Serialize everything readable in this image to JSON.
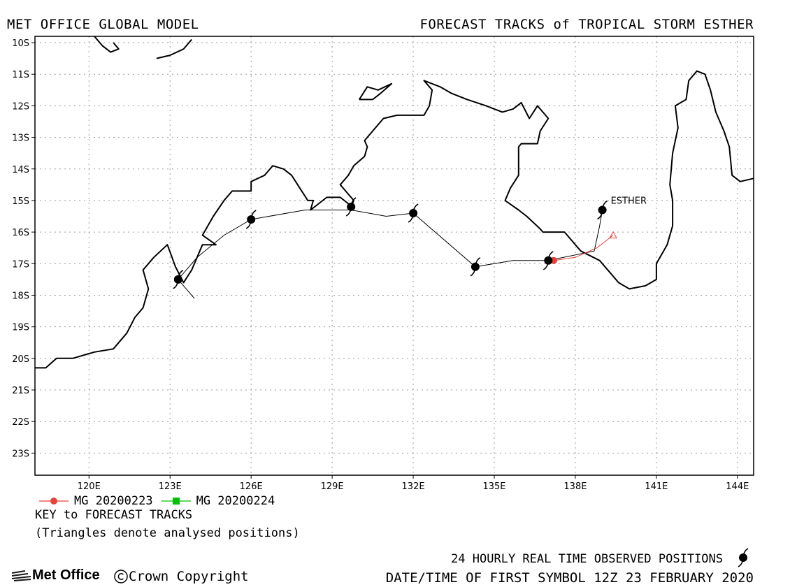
{
  "header": {
    "left": "MET OFFICE GLOBAL MODEL",
    "right": "FORECAST TRACKS of TROPICAL STORM ESTHER"
  },
  "map": {
    "lon_range": [
      118,
      144.6
    ],
    "lat_range": [
      -23.7,
      -9.8
    ],
    "lon_ticks": [
      {
        "value": 120,
        "label": "120E"
      },
      {
        "value": 123,
        "label": "123E"
      },
      {
        "value": 126,
        "label": "126E"
      },
      {
        "value": 129,
        "label": "129E"
      },
      {
        "value": 132,
        "label": "132E"
      },
      {
        "value": 135,
        "label": "135E"
      },
      {
        "value": 138,
        "label": "138E"
      },
      {
        "value": 141,
        "label": "141E"
      },
      {
        "value": 144,
        "label": "144E"
      }
    ],
    "lat_ticks": [
      {
        "value": -10,
        "label": "10S"
      },
      {
        "value": -11,
        "label": "11S"
      },
      {
        "value": -12,
        "label": "12S"
      },
      {
        "value": -13,
        "label": "13S"
      },
      {
        "value": -14,
        "label": "14S"
      },
      {
        "value": -15,
        "label": "15S"
      },
      {
        "value": -16,
        "label": "16S"
      },
      {
        "value": -17,
        "label": "17S"
      },
      {
        "value": -18,
        "label": "18S"
      },
      {
        "value": -19,
        "label": "19S"
      },
      {
        "value": -20,
        "label": "20S"
      },
      {
        "value": -21,
        "label": "21S"
      },
      {
        "value": -22,
        "label": "22S"
      },
      {
        "value": -23,
        "label": "23S"
      }
    ],
    "grid": "dotted",
    "coastline": [
      [
        [
          118,
          -20.3
        ],
        [
          118.4,
          -20.3
        ],
        [
          118.8,
          -20.0
        ],
        [
          119.4,
          -20.0
        ],
        [
          120.2,
          -19.8
        ],
        [
          120.9,
          -19.7
        ],
        [
          121.4,
          -19.2
        ],
        [
          121.7,
          -18.7
        ],
        [
          122.0,
          -18.4
        ],
        [
          122.2,
          -17.8
        ],
        [
          122.0,
          -17.2
        ],
        [
          122.4,
          -16.8
        ],
        [
          122.9,
          -16.4
        ],
        [
          123.2,
          -17.1
        ],
        [
          123.5,
          -17.6
        ],
        [
          123.8,
          -17.2
        ],
        [
          124.0,
          -16.8
        ],
        [
          124.2,
          -16.4
        ],
        [
          124.7,
          -16.4
        ],
        [
          124.2,
          -16.1
        ],
        [
          124.6,
          -15.5
        ],
        [
          125.0,
          -15.0
        ],
        [
          125.3,
          -14.7
        ],
        [
          126.0,
          -14.7
        ],
        [
          126.0,
          -14.4
        ],
        [
          126.5,
          -14.2
        ],
        [
          126.8,
          -13.9
        ],
        [
          127.2,
          -14.0
        ],
        [
          127.5,
          -14.2
        ],
        [
          127.8,
          -14.6
        ],
        [
          128.1,
          -15.0
        ],
        [
          128.3,
          -15.0
        ],
        [
          128.2,
          -15.3
        ],
        [
          128.5,
          -15.1
        ],
        [
          128.8,
          -14.9
        ],
        [
          129.3,
          -14.9
        ],
        [
          129.6,
          -15.1
        ],
        [
          129.7,
          -15.2
        ],
        [
          129.8,
          -15.0
        ],
        [
          129.6,
          -14.8
        ],
        [
          129.3,
          -14.5
        ],
        [
          129.6,
          -14.2
        ],
        [
          129.8,
          -13.9
        ],
        [
          130.2,
          -13.6
        ],
        [
          130.3,
          -13.3
        ],
        [
          130.2,
          -13.1
        ],
        [
          130.6,
          -12.7
        ],
        [
          130.9,
          -12.4
        ],
        [
          131.4,
          -12.3
        ],
        [
          132.0,
          -12.3
        ],
        [
          132.4,
          -12.3
        ],
        [
          132.6,
          -12.0
        ],
        [
          132.7,
          -11.5
        ],
        [
          132.4,
          -11.2
        ],
        [
          133.0,
          -11.4
        ],
        [
          133.4,
          -11.6
        ],
        [
          134.0,
          -11.8
        ],
        [
          134.7,
          -12.0
        ],
        [
          135.3,
          -12.2
        ],
        [
          135.7,
          -12.1
        ],
        [
          136.0,
          -11.9
        ],
        [
          136.3,
          -12.4
        ],
        [
          136.6,
          -12.0
        ],
        [
          137.0,
          -12.4
        ],
        [
          136.7,
          -12.8
        ],
        [
          136.6,
          -13.2
        ],
        [
          136.0,
          -13.2
        ],
        [
          135.9,
          -13.3
        ],
        [
          135.9,
          -14.2
        ],
        [
          135.6,
          -14.6
        ],
        [
          135.4,
          -15.0
        ],
        [
          135.9,
          -15.3
        ],
        [
          136.2,
          -15.5
        ],
        [
          136.7,
          -15.9
        ],
        [
          136.8,
          -16.0
        ],
        [
          137.6,
          -16.0
        ],
        [
          138.2,
          -16.6
        ],
        [
          138.9,
          -16.9
        ],
        [
          139.3,
          -17.3
        ],
        [
          139.6,
          -17.6
        ],
        [
          140.0,
          -17.8
        ],
        [
          140.6,
          -17.7
        ],
        [
          141.0,
          -17.5
        ],
        [
          141.0,
          -17.0
        ],
        [
          141.4,
          -16.4
        ],
        [
          141.6,
          -15.8
        ],
        [
          141.6,
          -15.0
        ],
        [
          141.5,
          -14.5
        ],
        [
          141.6,
          -13.5
        ],
        [
          141.8,
          -12.7
        ],
        [
          141.7,
          -12.0
        ],
        [
          142.1,
          -11.8
        ],
        [
          142.2,
          -11.2
        ],
        [
          142.5,
          -10.9
        ],
        [
          142.8,
          -11.0
        ],
        [
          143.0,
          -11.5
        ],
        [
          143.2,
          -12.2
        ],
        [
          143.5,
          -12.8
        ],
        [
          143.7,
          -13.3
        ],
        [
          143.8,
          -14.2
        ],
        [
          144.1,
          -14.4
        ],
        [
          144.6,
          -14.3
        ]
      ],
      [
        [
          120.2,
          -9.8
        ],
        [
          120.5,
          -10.1
        ],
        [
          120.8,
          -10.3
        ],
        [
          121.1,
          -10.2
        ],
        [
          120.9,
          -10.0
        ]
      ],
      [
        [
          122.5,
          -10.5
        ],
        [
          123.0,
          -10.4
        ],
        [
          123.5,
          -10.2
        ],
        [
          123.8,
          -9.9
        ]
      ],
      [
        [
          130.0,
          -11.8
        ],
        [
          130.3,
          -11.4
        ],
        [
          130.7,
          -11.5
        ],
        [
          131.2,
          -11.3
        ],
        [
          130.8,
          -11.6
        ],
        [
          130.5,
          -11.8
        ],
        [
          130.0,
          -11.8
        ]
      ]
    ]
  },
  "storm_symbols": [
    {
      "lon": 139.0,
      "lat": -15.3
    },
    {
      "lon": 137.0,
      "lat": -16.9
    },
    {
      "lon": 134.3,
      "lat": -17.1
    },
    {
      "lon": 132.0,
      "lat": -15.4
    },
    {
      "lon": 129.7,
      "lat": -15.2
    },
    {
      "lon": 126.0,
      "lat": -15.6
    },
    {
      "lon": 123.3,
      "lat": -17.5
    }
  ],
  "observed_track": [
    [
      123.9,
      -18.1
    ],
    [
      123.3,
      -17.5
    ],
    [
      124.0,
      -16.8
    ],
    [
      125.0,
      -16.1
    ],
    [
      126.0,
      -15.6
    ],
    [
      128.0,
      -15.3
    ],
    [
      129.7,
      -15.3
    ],
    [
      131.0,
      -15.5
    ],
    [
      132.0,
      -15.4
    ],
    [
      134.3,
      -17.1
    ],
    [
      135.7,
      -16.9
    ],
    [
      137.0,
      -16.9
    ],
    [
      138.7,
      -16.6
    ],
    [
      138.9,
      -15.8
    ],
    [
      139.0,
      -15.3
    ]
  ],
  "storm_name": "ESTHER",
  "forecast_tracks": [
    {
      "name": "MG 20200223",
      "color": "#e8413a",
      "marker": "circle",
      "points": [
        [
          137.2,
          -16.9
        ],
        [
          138.0,
          -16.8
        ],
        [
          138.8,
          -16.5
        ],
        [
          139.4,
          -16.1
        ]
      ]
    },
    {
      "name": "MG 20200224",
      "color": "#00c000",
      "marker": "square",
      "points": []
    }
  ],
  "key_title": "KEY to FORECAST TRACKS",
  "key_note": "(Triangles denote analysed positions)",
  "footer": {
    "observed": "24 HOURLY REAL TIME OBSERVED POSITIONS",
    "datetime": "DATE/TIME OF FIRST SYMBOL 12Z 23 FEBRUARY 2020",
    "logo": "Met Office",
    "copyright": "Crown Copyright"
  },
  "colors": {
    "coast": "#000000",
    "grid": "#9a9a9a",
    "track": "#000000"
  }
}
